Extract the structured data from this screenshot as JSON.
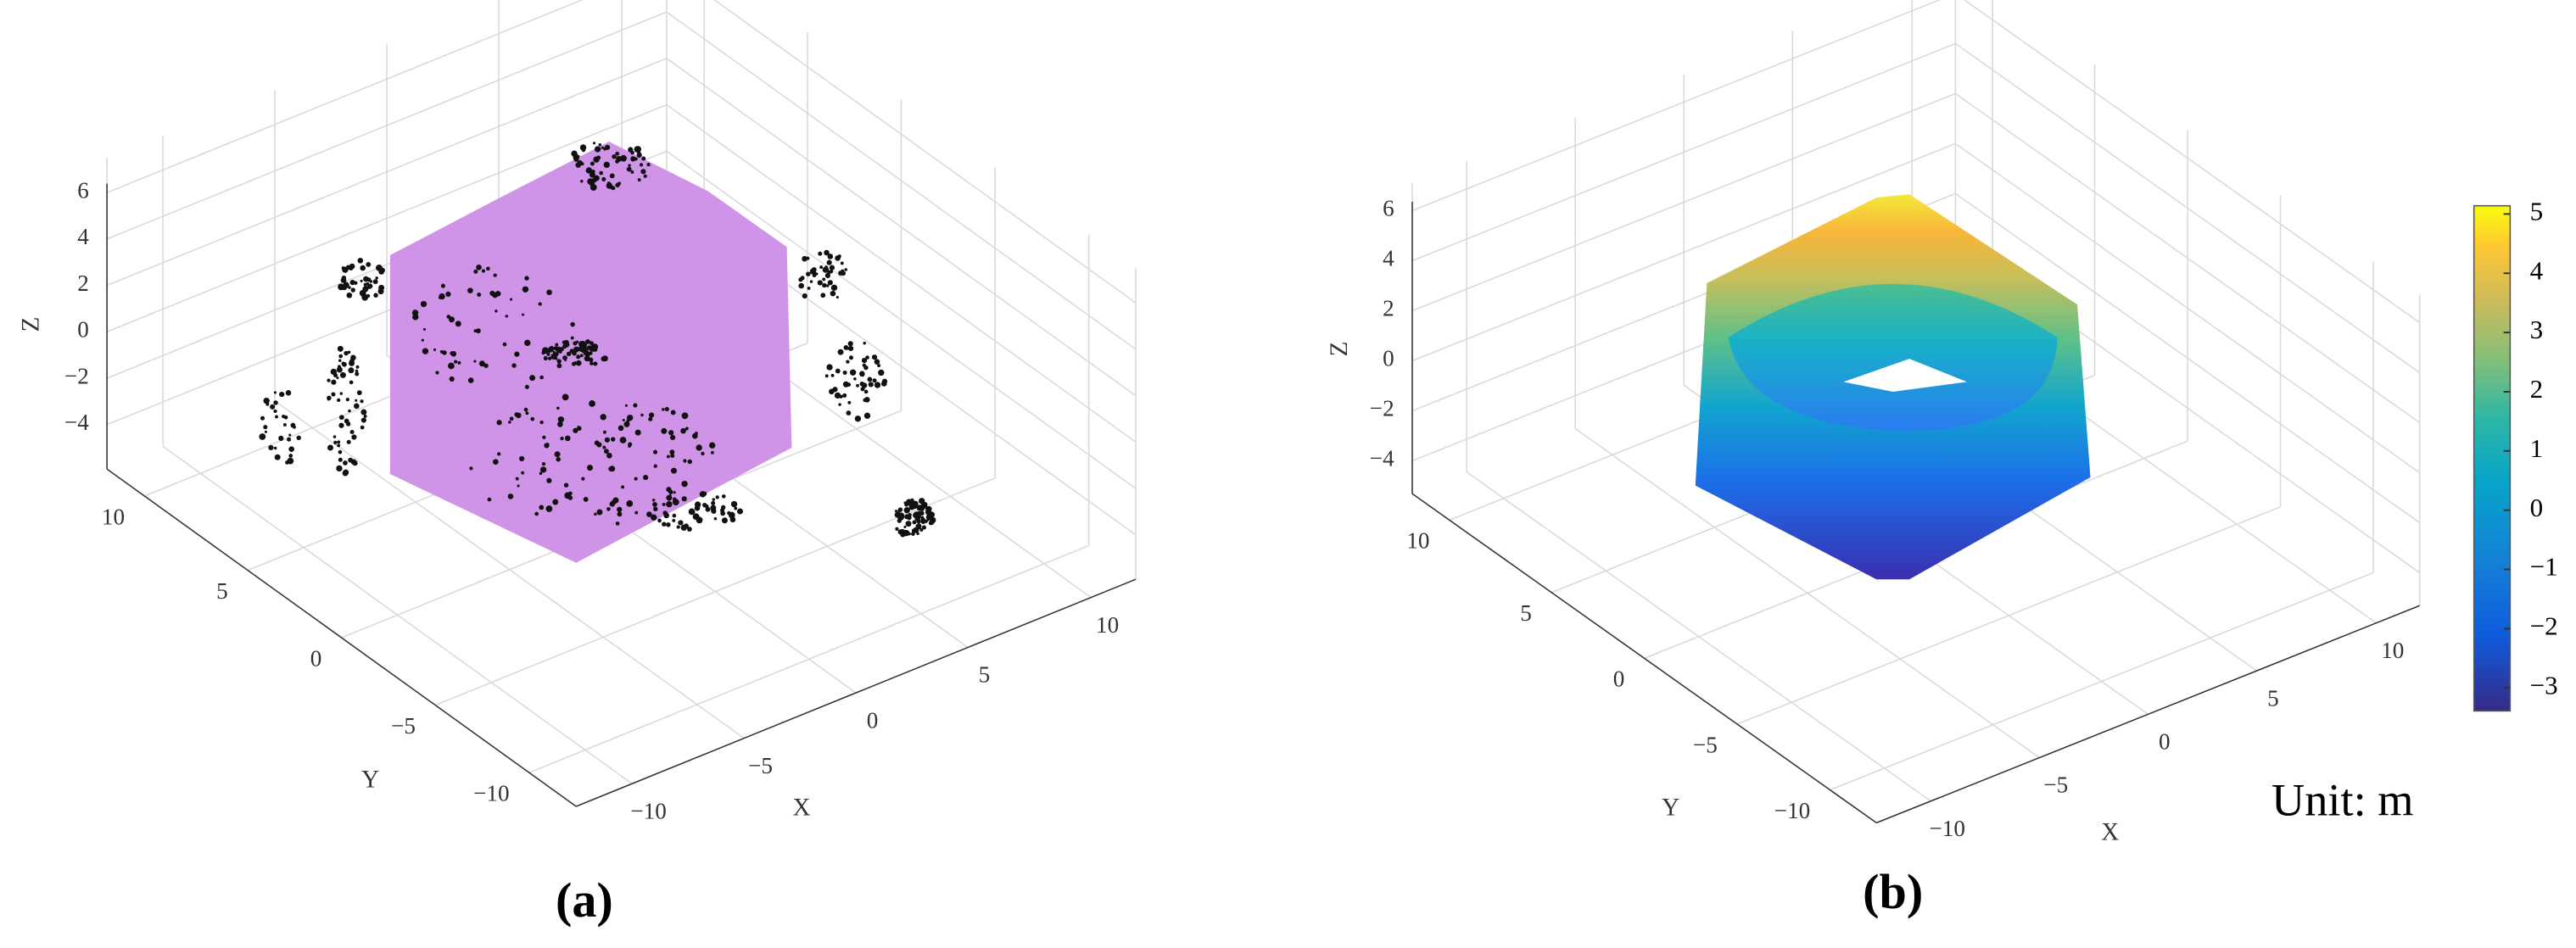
{
  "panels": [
    {
      "label": "(a)",
      "z_axis": {
        "label": "Z",
        "ticks": [
          "6",
          "4",
          "2",
          "0",
          "−2",
          "−4"
        ]
      },
      "y_axis": {
        "label": "Y",
        "ticks": [
          "10",
          "5",
          "0",
          "−5",
          "−10"
        ]
      },
      "x_axis": {
        "label": "X",
        "ticks": [
          "−10",
          "−5",
          "0",
          "5",
          "10"
        ]
      }
    },
    {
      "label": "(b)",
      "z_axis": {
        "label": "Z",
        "ticks": [
          "6",
          "4",
          "2",
          "0",
          "−2",
          "−4"
        ]
      },
      "y_axis": {
        "label": "Y",
        "ticks": [
          "10",
          "5",
          "0",
          "−5",
          "−10"
        ]
      },
      "x_axis": {
        "label": "X",
        "ticks": [
          "−10",
          "−5",
          "0",
          "5",
          "10"
        ]
      },
      "colorbar": {
        "ticks": [
          "5",
          "4",
          "3",
          "2",
          "1",
          "0",
          "−1",
          "−2",
          "−3"
        ]
      },
      "unit_note": "Unit: m"
    }
  ]
}
